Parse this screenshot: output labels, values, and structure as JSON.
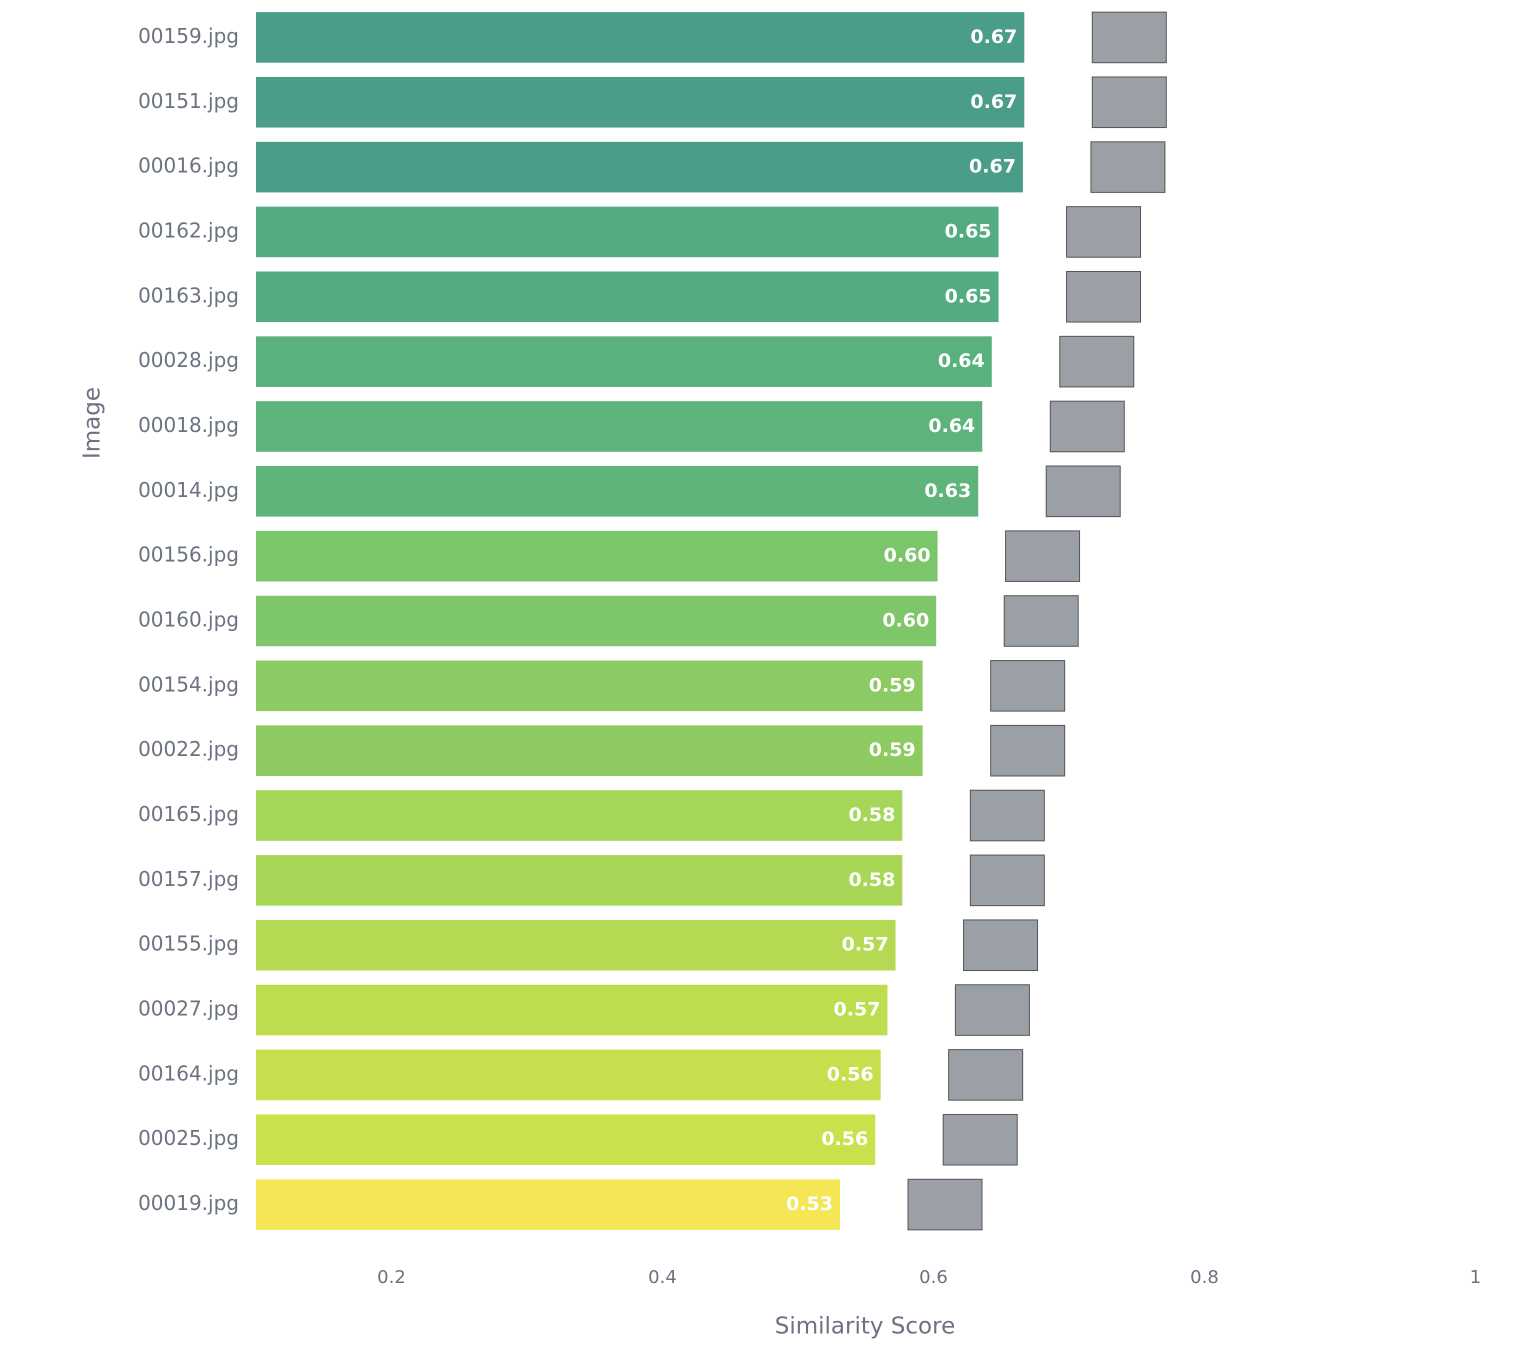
{
  "chart_data": {
    "type": "bar",
    "orientation": "horizontal",
    "x_label": "Similarity Score",
    "y_label": "Image",
    "categories": [
      "00159.jpg",
      "00151.jpg",
      "00016.jpg",
      "00162.jpg",
      "00163.jpg",
      "00028.jpg",
      "00018.jpg",
      "00014.jpg",
      "00156.jpg",
      "00160.jpg",
      "00154.jpg",
      "00022.jpg",
      "00165.jpg",
      "00157.jpg",
      "00155.jpg",
      "00027.jpg",
      "00164.jpg",
      "00025.jpg",
      "00019.jpg"
    ],
    "values": [
      0.667,
      0.667,
      0.666,
      0.648,
      0.648,
      0.643,
      0.636,
      0.633,
      0.603,
      0.602,
      0.592,
      0.592,
      0.577,
      0.577,
      0.572,
      0.566,
      0.561,
      0.557,
      0.531
    ],
    "value_labels": [
      "0.67",
      "0.67",
      "0.67",
      "0.65",
      "0.65",
      "0.64",
      "0.64",
      "0.63",
      "0.60",
      "0.60",
      "0.59",
      "0.59",
      "0.58",
      "0.58",
      "0.57",
      "0.57",
      "0.56",
      "0.56",
      "0.53"
    ],
    "colors": [
      "#4a9d88",
      "#4a9d88",
      "#4a9d88",
      "#53ab80",
      "#53ab80",
      "#59b17d",
      "#5db37b",
      "#5eb47a",
      "#7bc56b",
      "#7ec66a",
      "#8ccb63",
      "#8dcb62",
      "#a6d658",
      "#a8d656",
      "#b3da52",
      "#bddd4f",
      "#c6df4d",
      "#cbe14b",
      "#f5e655"
    ],
    "xlim": [
      0.1,
      1.02
    ],
    "xticks": [
      0.2,
      0.4,
      0.6,
      0.8,
      1
    ],
    "grid": false
  }
}
